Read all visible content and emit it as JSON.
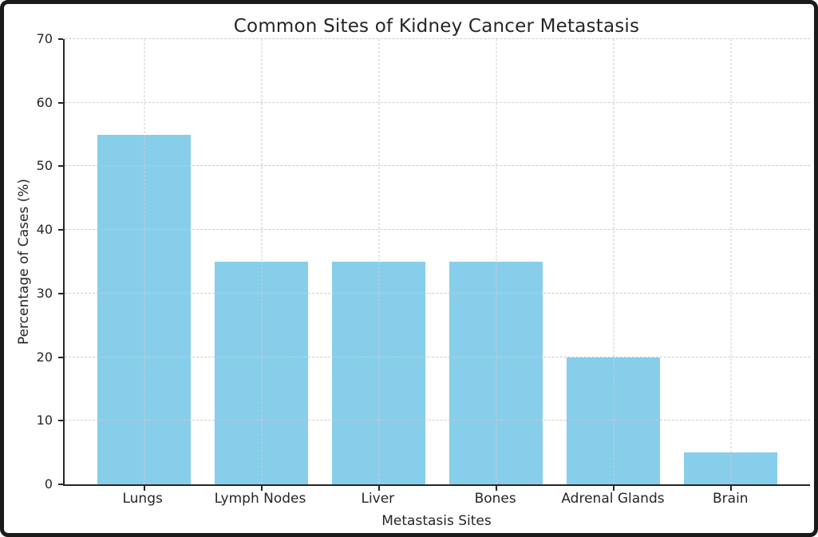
{
  "chart_data": {
    "type": "bar",
    "title": "Common Sites of Kidney Cancer Metastasis",
    "xlabel": "Metastasis Sites",
    "ylabel": "Percentage of Cases (%)",
    "categories": [
      "Lungs",
      "Lymph Nodes",
      "Liver",
      "Bones",
      "Adrenal Glands",
      "Brain"
    ],
    "values": [
      55,
      35,
      35,
      35,
      20,
      5
    ],
    "ylim": [
      0,
      70
    ],
    "yticks": [
      0,
      10,
      20,
      30,
      40,
      50,
      60,
      70
    ],
    "grid": true,
    "grid_style": "dashed",
    "grid_on_top": true,
    "legend": "none",
    "bar_color": "#87CEEB",
    "grid_color": "#cccccc",
    "axis_color": "#262626",
    "text_color": "#262626",
    "frame_border_color": "#1a1a1a",
    "background_color": "#ffffff"
  }
}
